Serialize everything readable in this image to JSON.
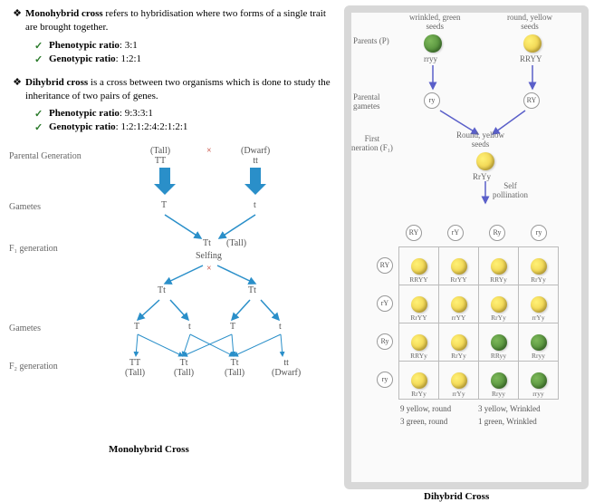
{
  "defs": {
    "mono": {
      "title": "Monohybrid cross",
      "rest": " refers to hybridisation where two forms of a single trait are brought together.",
      "pheno_lbl": "Phenotypic ratio",
      "pheno_val": ": 3:1",
      "geno_lbl": "Genotypic ratio",
      "geno_val": ": 1:2:1"
    },
    "di": {
      "title": "Dihybrid cross",
      "rest": " is a cross between two organisms which is done to study the inheritance of two pairs of genes.",
      "pheno_lbl": "Phenotypic ratio",
      "pheno_val": ": 9:3:3:1",
      "geno_lbl": "Genotypic ratio",
      "geno_val": ": 1:2:1:2:4:2:1:2:1"
    }
  },
  "mono_diagram": {
    "rows": {
      "parental": "Parental Generation",
      "gametes": "Gametes",
      "f1": "F₁ generation",
      "gametes2": "Gametes",
      "f2": "F₂ generation"
    },
    "p1": "(Tall)\nTT",
    "p2": "(Dwarf)\ntt",
    "cross": "×",
    "g1": "T",
    "g2": "t",
    "f1_geno": "Tt",
    "f1_pheno": "(Tall)",
    "selfing": "Selfing",
    "tt1": "Tt",
    "tt2": "Tt",
    "g_a": "T",
    "g_b": "t",
    "g_c": "T",
    "g_d": "t",
    "f2_1": "TT\n(Tall)",
    "f2_2": "Tt\n(Tall)",
    "f2_3": "Tt\n(Tall)",
    "f2_4": "tt\n(Dwarf)",
    "caption": "Monohybrid Cross",
    "arrow_color": "#2a8fc9"
  },
  "di_diagram": {
    "p1_lbl": "wrinkled, green\nseeds",
    "p2_lbl": "round, yellow\nseeds",
    "parents": "Parents (P)",
    "p1_geno": "rryy",
    "p2_geno": "RRYY",
    "par_gam": "Parental\ngametes",
    "g1": "ry",
    "g2": "RY",
    "f1_lbl": "First\nneration (F₁)",
    "f1_pheno": "Round, yellow\nseeds",
    "f1_geno": "RrYy",
    "self": "Self\npollination",
    "col_gam": [
      "RY",
      "rY",
      "Ry",
      "ry"
    ],
    "row_gam": [
      "RY",
      "rY",
      "Ry",
      "ry"
    ],
    "cells": [
      [
        "RRYY",
        "RrYY",
        "RRYy",
        "RrYy"
      ],
      [
        "RrYY",
        "rrYY",
        "RrYy",
        "rrYy"
      ],
      [
        "RRYy",
        "RrYy",
        "RRyy",
        "Rryy"
      ],
      [
        "RrYy",
        "rrYy",
        "Rryy",
        "rryy"
      ]
    ],
    "colors": [
      [
        "y",
        "y",
        "y",
        "y"
      ],
      [
        "y",
        "y",
        "y",
        "y"
      ],
      [
        "y",
        "y",
        "g",
        "g"
      ],
      [
        "y",
        "y",
        "g",
        "g"
      ]
    ],
    "summary1": "9 yellow, round",
    "summary2": "3 yellow, Wrinkled",
    "summary3": "3 green, round",
    "summary4": "1 green, Wrinkled",
    "caption": "Dihybrid Cross",
    "arrow_color": "#5a5fc9"
  }
}
